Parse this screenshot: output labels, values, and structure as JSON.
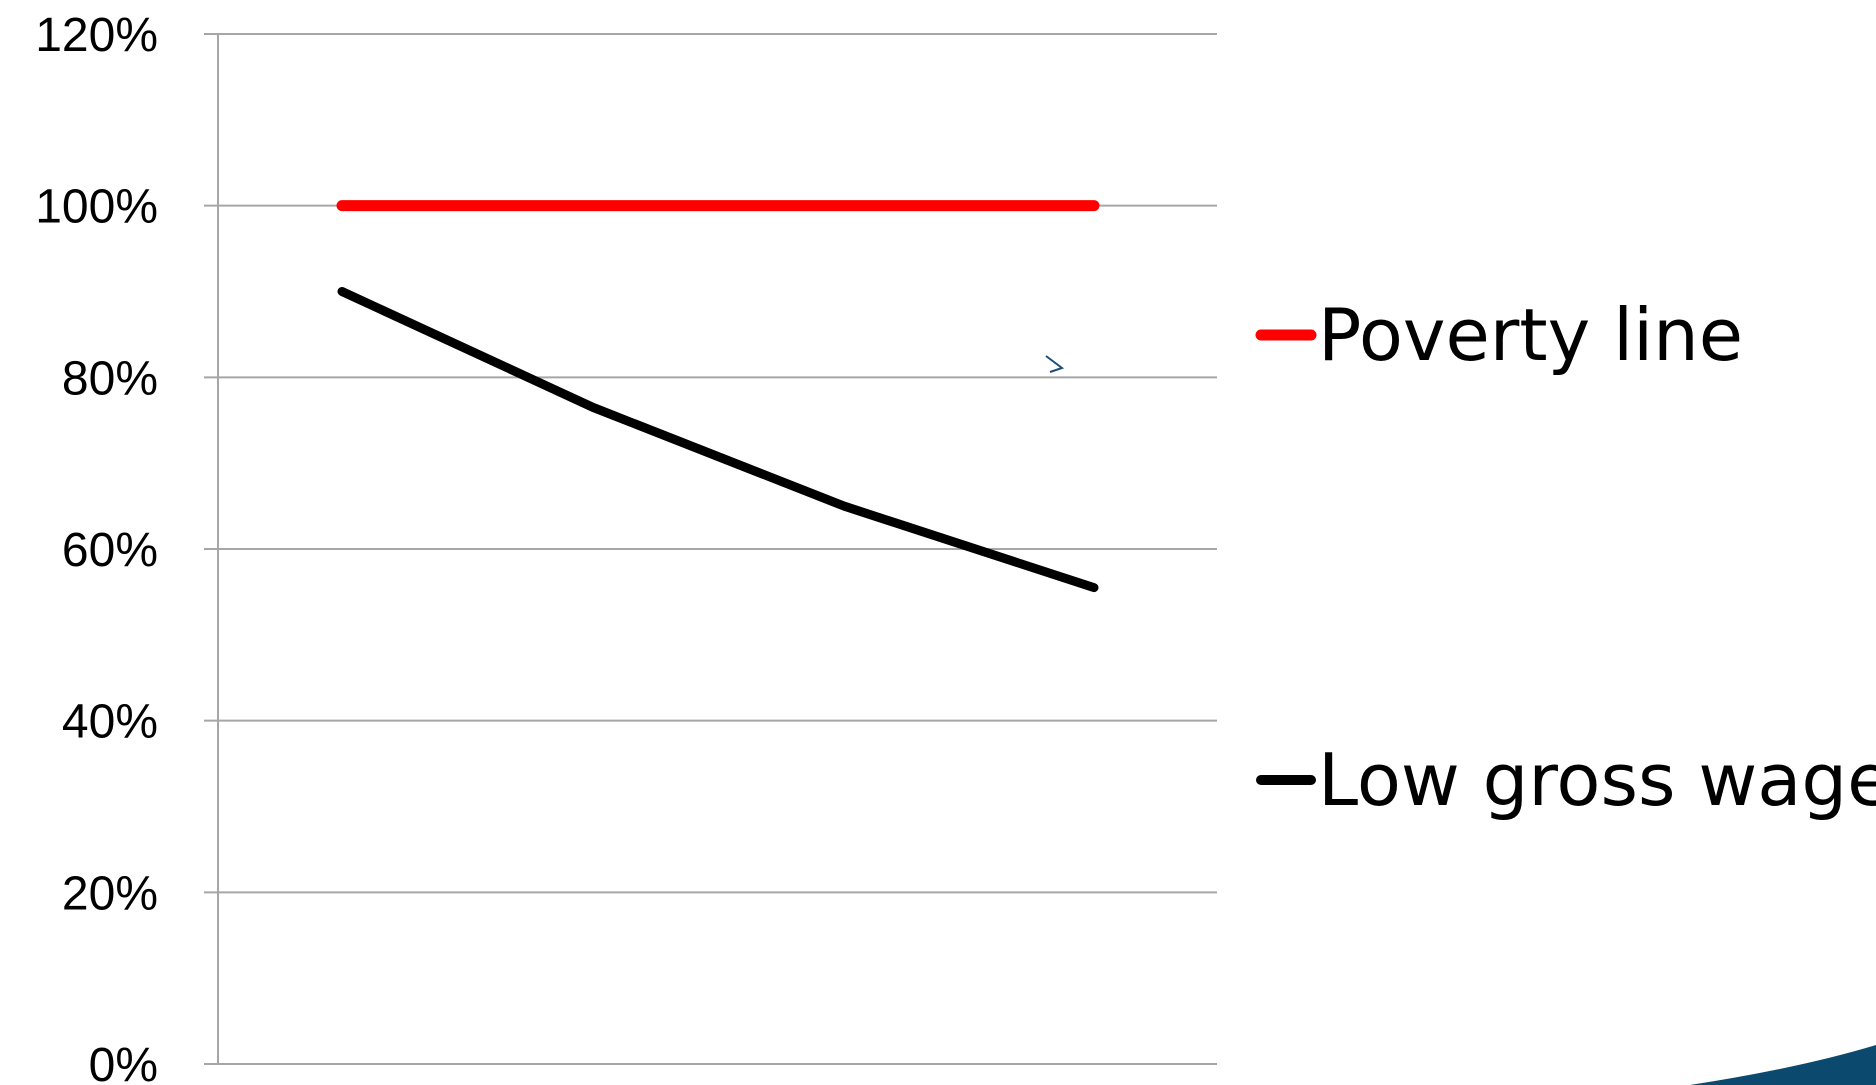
{
  "chart_data": {
    "type": "line",
    "title": "",
    "xlabel": "",
    "ylabel": "",
    "x": [
      1,
      2,
      3,
      4
    ],
    "ylim": [
      0,
      1.2
    ],
    "yticks": [
      0,
      0.2,
      0.4,
      0.6,
      0.8,
      1.0,
      1.2
    ],
    "ytick_labels": [
      "0%",
      "20%",
      "40%",
      "60%",
      "80%",
      "100%",
      "120%"
    ],
    "grid": true,
    "legend_position": "right",
    "series": [
      {
        "name": "Poverty line",
        "values": [
          1.0,
          1.0,
          1.0,
          1.0
        ],
        "color": "#ff0000"
      },
      {
        "name": "Low gross wage",
        "values": [
          0.9,
          0.765,
          0.65,
          0.555
        ],
        "color": "#000000"
      }
    ]
  },
  "decorations": {
    "corner_accent_color": "#0b4a6e",
    "grid_color": "#a6a6a6"
  }
}
